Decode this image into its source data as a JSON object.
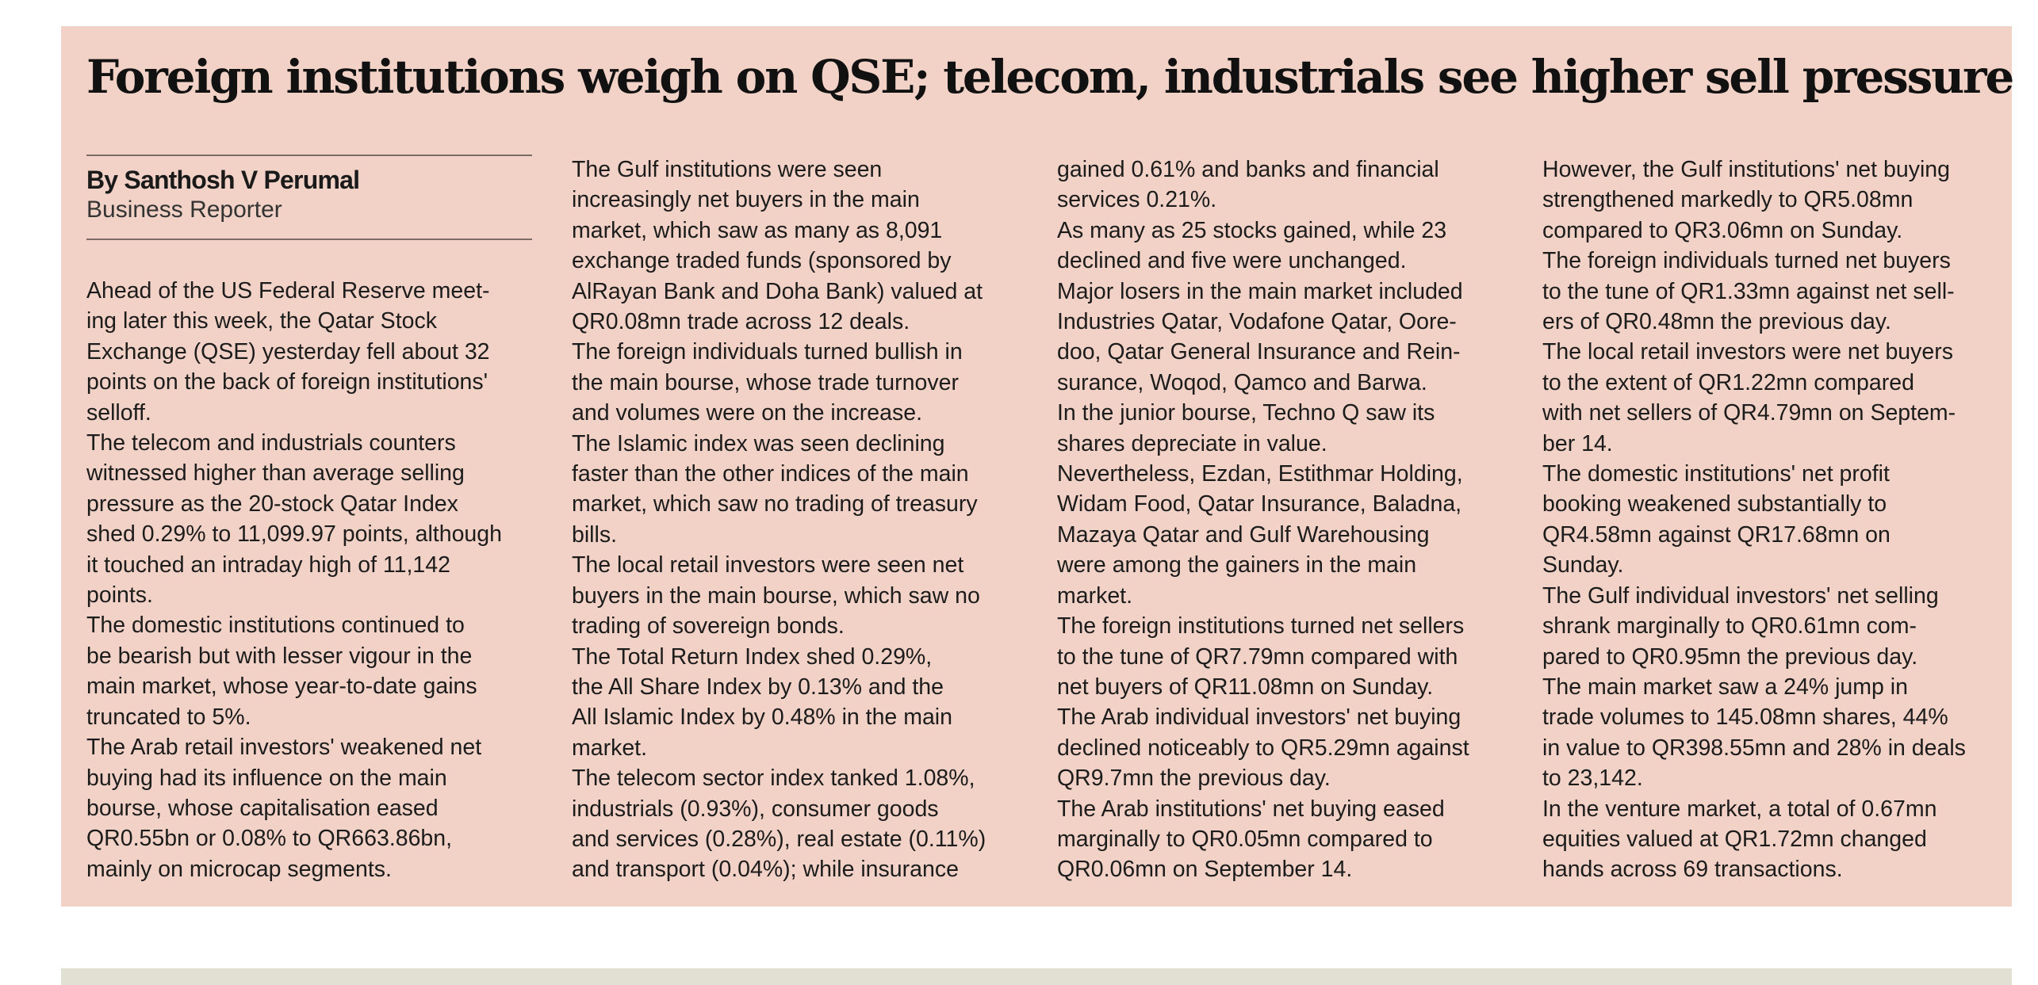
{
  "article": {
    "headline": "Foreign institutions weigh on QSE; telecom, industrials see higher sell pressure",
    "byline": {
      "name": "By Santhosh V Perumal",
      "role": "Business Reporter"
    },
    "columns": [
      [
        "Ahead of the US Federal Reserve meet-",
        "ing later this week, the Qatar Stock",
        "Exchange (QSE) yesterday fell about 32",
        "points on the back of foreign institutions'",
        "selloff.",
        "The telecom and industrials counters",
        "witnessed higher than average selling",
        "pressure as the 20-stock Qatar Index",
        "shed 0.29% to 11,099.97 points, although",
        "it touched an intraday high of 11,142",
        "points.",
        "The domestic institutions continued to",
        "be bearish but with lesser vigour in the",
        "main market, whose year-to-date gains",
        "truncated to 5%.",
        "The Arab retail investors' weakened net",
        "buying had its influence on the main",
        "bourse, whose capitalisation eased",
        "QR0.55bn or 0.08% to QR663.86bn,",
        "mainly on microcap segments."
      ],
      [
        "The Gulf institutions were seen",
        "increasingly net buyers in the main",
        "market, which saw as many as 8,091",
        "exchange traded funds (sponsored by",
        "AlRayan Bank and Doha Bank) valued at",
        "QR0.08mn trade across 12 deals.",
        "The foreign individuals turned bullish in",
        "the main bourse, whose trade turnover",
        "and volumes were on the increase.",
        "The Islamic index was seen declining",
        "faster than the other indices of the main",
        "market, which saw no trading of treasury",
        "bills.",
        "The local retail investors were seen net",
        "buyers in the main bourse, which saw no",
        "trading of sovereign bonds.",
        "The Total Return Index shed 0.29%,",
        "the All Share Index by 0.13% and the",
        "All Islamic Index by 0.48% in the main",
        "market.",
        "The telecom sector index tanked 1.08%,",
        "industrials (0.93%), consumer goods",
        "and services (0.28%), real estate (0.11%)",
        "and transport (0.04%); while insurance"
      ],
      [
        "gained 0.61% and banks and financial",
        "services 0.21%.",
        "As many as 25 stocks gained, while 23",
        "declined and five were unchanged.",
        "Major losers in the main market included",
        "Industries Qatar, Vodafone Qatar, Oore-",
        "doo, Qatar General Insurance and Rein-",
        "surance, Woqod, Qamco and Barwa.",
        "In the junior bourse, Techno Q saw its",
        "shares depreciate in value.",
        "Nevertheless, Ezdan, Estithmar Holding,",
        "Widam Food, Qatar Insurance, Baladna,",
        "Mazaya Qatar and Gulf Warehousing",
        "were among the gainers in the main",
        "market.",
        "The foreign institutions turned net sellers",
        "to the tune of QR7.79mn compared with",
        "net buyers of QR11.08mn on Sunday.",
        "The Arab individual investors' net buying",
        "declined noticeably to QR5.29mn against",
        "QR9.7mn the previous day.",
        "The Arab institutions' net buying eased",
        "marginally to QR0.05mn compared to",
        "QR0.06mn on September 14."
      ],
      [
        "However, the Gulf institutions' net buying",
        "strengthened markedly to QR5.08mn",
        "compared to QR3.06mn on Sunday.",
        "The foreign individuals turned net buyers",
        "to the tune of QR1.33mn against net sell-",
        "ers of QR0.48mn the previous day.",
        "The local retail investors were net buyers",
        "to the extent of QR1.22mn compared",
        "with net sellers of QR4.79mn on Septem-",
        "ber 14.",
        "The domestic institutions' net profit",
        "booking weakened substantially to",
        "QR4.58mn against QR17.68mn on",
        "Sunday.",
        "The Gulf individual investors' net selling",
        "shrank marginally to QR0.61mn com-",
        "pared to QR0.95mn the previous day.",
        "The main market saw a 24% jump in",
        "trade volumes to 145.08mn shares, 44%",
        "in value to QR398.55mn and 28% in deals",
        "to 23,142.",
        "In the venture market, a total of 0.67mn",
        "equities valued at QR1.72mn changed",
        "hands across 69 transactions."
      ]
    ]
  },
  "colors": {
    "article_background": "#f2d2c6",
    "bottom_band": "#e2e0d3",
    "text": "#1c1c1c"
  }
}
